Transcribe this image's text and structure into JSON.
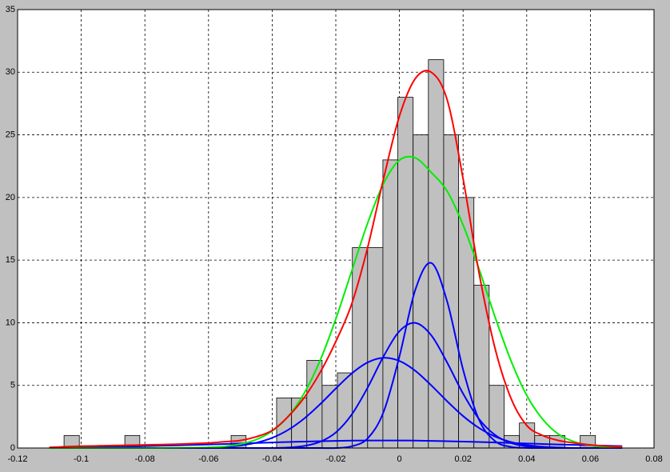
{
  "chart_data": [
    {
      "type": "histogram",
      "bins": [
        -0.1054,
        -0.1006,
        -0.0959,
        -0.0911,
        -0.0863,
        -0.0816,
        -0.0768,
        -0.072,
        -0.0672,
        -0.0625,
        -0.0577,
        -0.0529,
        -0.0482,
        -0.0434,
        -0.0386,
        -0.0339,
        -0.0291,
        -0.0243,
        -0.0195,
        -0.0148,
        -0.01,
        -0.0052,
        -0.0005,
        0.0043,
        0.0091,
        0.0139,
        0.0186,
        0.0234,
        0.0282,
        0.0329,
        0.0377,
        0.0425,
        0.0472,
        0.052,
        0.0568,
        0.0616
      ],
      "values": [
        1,
        0,
        0,
        0,
        1,
        0,
        0,
        0,
        0,
        0,
        0,
        1,
        0,
        0,
        4,
        4,
        7,
        5,
        6,
        16,
        16,
        23,
        28,
        25,
        31,
        25,
        20,
        13,
        5,
        1,
        2,
        1,
        1,
        0,
        1
      ],
      "color": "#c0c0c0",
      "xlim": [
        -0.12,
        0.08
      ],
      "xticks": [
        -0.12,
        -0.1,
        -0.08,
        -0.06,
        -0.04,
        -0.02,
        0,
        0.02,
        0.04,
        0.06,
        0.08
      ],
      "ylim": [
        0,
        35
      ],
      "yticks": [
        0,
        5,
        10,
        15,
        20,
        25,
        30,
        35
      ],
      "grid": true
    },
    {
      "type": "line",
      "x": [
        -0.11,
        -0.105,
        -0.1,
        -0.095,
        -0.09,
        -0.085,
        -0.08,
        -0.075,
        -0.07,
        -0.065,
        -0.06,
        -0.055,
        -0.05,
        -0.045,
        -0.04,
        -0.035,
        -0.03,
        -0.025,
        -0.02,
        -0.015,
        -0.01,
        -0.005,
        0,
        0.005,
        0.01,
        0.015,
        0.02,
        0.025,
        0.03,
        0.035,
        0.04,
        0.045,
        0.05,
        0.055,
        0.06,
        0.065,
        0.07
      ],
      "series": [
        {
          "color": "#0000ff",
          "values": [
            0,
            0,
            0,
            0,
            0,
            0,
            0,
            0,
            0,
            0,
            0,
            0,
            0,
            0,
            0,
            0,
            0,
            0,
            0,
            0.14,
            0.76,
            2.87,
            7.31,
            12.64,
            14.77,
            11.69,
            6.26,
            2.26,
            0.56,
            0.09,
            0.01,
            0,
            0,
            0,
            0,
            0,
            0
          ]
        },
        {
          "color": "#0000ff",
          "values": [
            0,
            0,
            0,
            0,
            0,
            0,
            0,
            0,
            0,
            0,
            0,
            0,
            0,
            0,
            0,
            0.04,
            0.16,
            0.49,
            1.24,
            2.67,
            4.82,
            7.31,
            9.32,
            9.99,
            9.0,
            6.82,
            4.34,
            2.32,
            1.05,
            0.4,
            0.13,
            0.03,
            0,
            0,
            0,
            0,
            0
          ]
        },
        {
          "color": "#0000ff",
          "values": [
            0,
            0,
            0,
            0,
            0,
            0,
            0,
            0,
            0,
            0,
            0.03,
            0.09,
            0.2,
            0.42,
            0.81,
            1.44,
            2.34,
            3.48,
            4.75,
            5.95,
            6.83,
            7.2,
            6.95,
            6.16,
            5.0,
            3.73,
            2.55,
            1.6,
            0.92,
            0.48,
            0.23,
            0.1,
            0.04,
            0.01,
            0,
            0,
            0
          ]
        },
        {
          "color": "#0000ff",
          "values": [
            0.04,
            0.05,
            0.06,
            0.08,
            0.1,
            0.12,
            0.15,
            0.18,
            0.21,
            0.25,
            0.28,
            0.32,
            0.36,
            0.4,
            0.44,
            0.48,
            0.51,
            0.54,
            0.57,
            0.59,
            0.6,
            0.6,
            0.6,
            0.59,
            0.57,
            0.54,
            0.51,
            0.48,
            0.44,
            0.4,
            0.36,
            0.32,
            0.28,
            0.25,
            0.21,
            0.18,
            0.15
          ]
        },
        {
          "color": "#00ee00",
          "values": [
            0,
            0,
            0,
            0,
            0,
            0,
            0,
            0,
            0.01,
            0.02,
            0.05,
            0.13,
            0.31,
            0.67,
            1.35,
            2.51,
            4.34,
            6.95,
            10.3,
            14.13,
            17.95,
            21.11,
            22.98,
            23.16,
            22.0,
            20.5,
            17.8,
            14.3,
            10.5,
            7.0,
            4.2,
            2.3,
            1.1,
            0.5,
            0.2,
            0.08,
            0.03
          ]
        },
        {
          "color": "#ff0000",
          "values": [
            0.05,
            0.1,
            0.15,
            0.17,
            0.2,
            0.22,
            0.25,
            0.27,
            0.3,
            0.35,
            0.4,
            0.5,
            0.6,
            0.9,
            1.4,
            2.5,
            4.0,
            6.0,
            8.5,
            11.5,
            16.0,
            21.5,
            26.5,
            29.5,
            30.0,
            27.8,
            21.5,
            14.0,
            8.0,
            4.0,
            1.8,
            1.0,
            0.6,
            0.4,
            0.25,
            0.15,
            0.1
          ]
        }
      ]
    }
  ]
}
